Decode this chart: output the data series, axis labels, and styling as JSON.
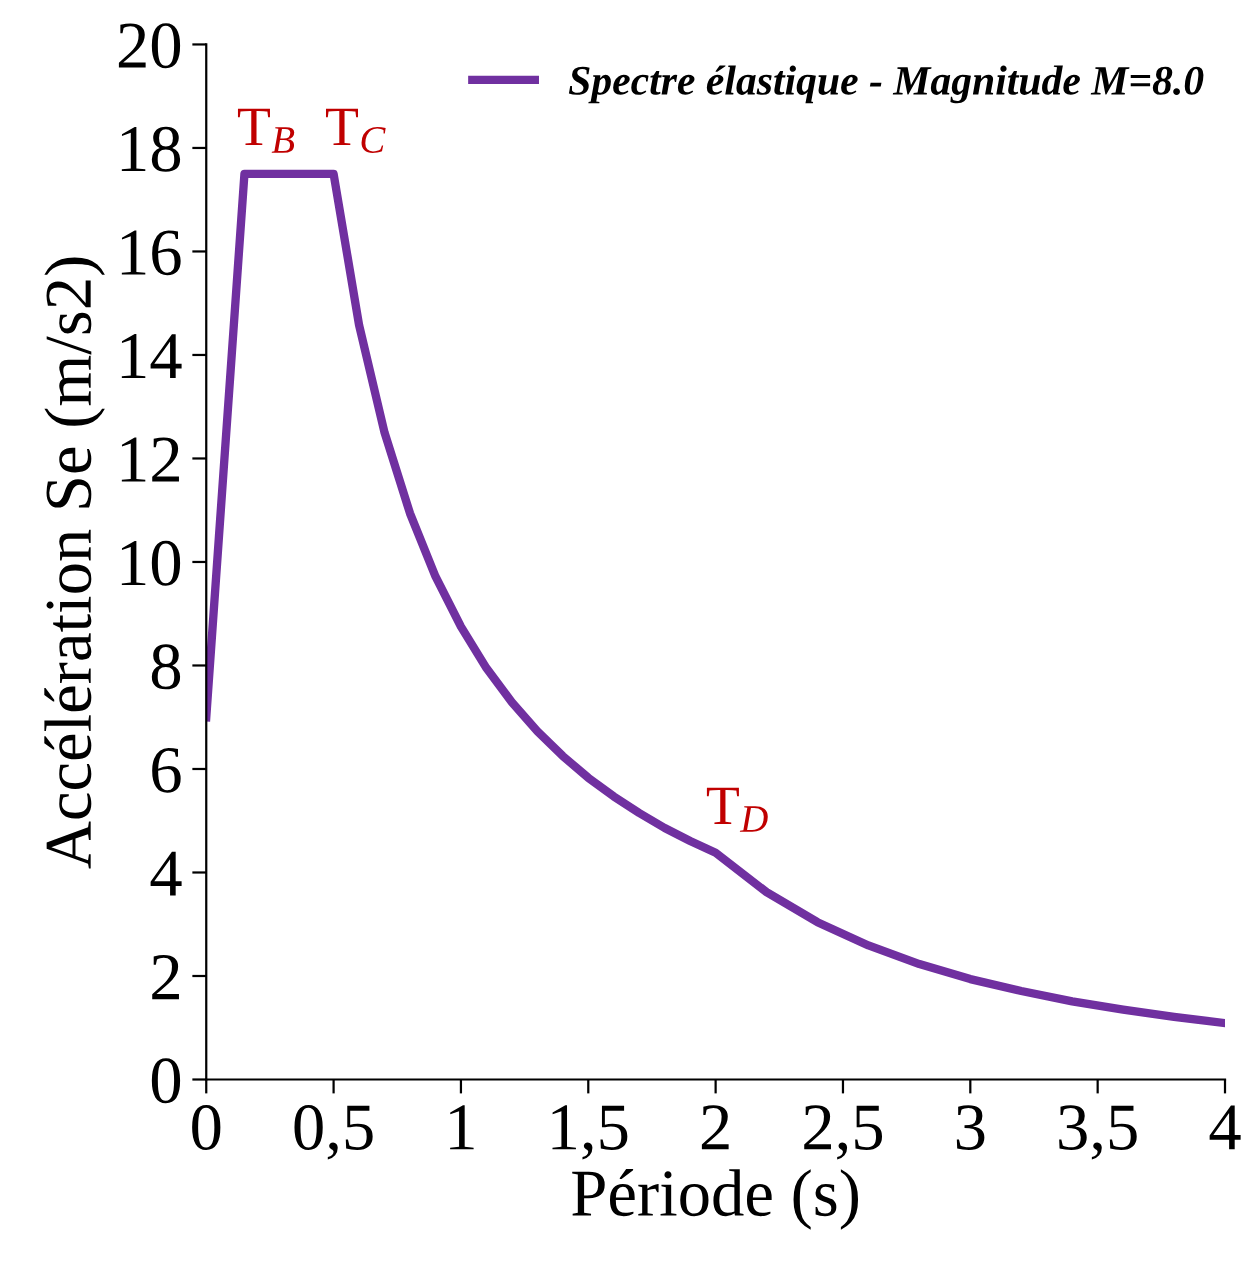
{
  "chart_data": {
    "type": "line",
    "xlabel": "Période (s)",
    "ylabel": "Accélération Se (m/s2)",
    "x": [
      0,
      0.05,
      0.1,
      0.15,
      0.5,
      0.6,
      0.7,
      0.8,
      0.9,
      1.0,
      1.1,
      1.2,
      1.3,
      1.4,
      1.5,
      1.6,
      1.7,
      1.8,
      1.9,
      2.0,
      2.2,
      2.4,
      2.6,
      2.8,
      3.0,
      3.2,
      3.4,
      3.6,
      3.8,
      4.0
    ],
    "series": [
      {
        "name": "Spectre élastique - Magnitude M=8.0",
        "color": "#7030a0",
        "values": [
          7,
          10.5,
          14,
          17.5,
          17.5,
          14.58,
          12.5,
          10.94,
          9.72,
          8.75,
          7.95,
          7.29,
          6.73,
          6.25,
          5.83,
          5.47,
          5.15,
          4.86,
          4.61,
          4.38,
          3.62,
          3.04,
          2.59,
          2.23,
          1.94,
          1.71,
          1.51,
          1.35,
          1.21,
          1.09
        ]
      }
    ],
    "xlim": [
      0,
      4
    ],
    "ylim": [
      0,
      20
    ],
    "xticks": [
      0,
      {
        "value": 0.5,
        "label": "0,5"
      },
      1,
      {
        "value": 1.5,
        "label": "1,5"
      },
      2,
      {
        "value": 2.5,
        "label": "2,5"
      },
      3,
      {
        "value": 3.5,
        "label": "3,5"
      },
      4
    ],
    "yticks": [
      0,
      2,
      4,
      6,
      8,
      10,
      12,
      14,
      16,
      18,
      20
    ],
    "annotations": [
      {
        "text": "T$_{B}$",
        "x": 0.15,
        "y": 17.5
      },
      {
        "text": "T$_{C}$",
        "x": 0.5,
        "y": 17.5
      },
      {
        "text": "T$_{D}$",
        "x": 2.0,
        "y": 4.38
      }
    ],
    "grid": false,
    "legend": "top right",
    "marker": "none",
    "line_style": "solid"
  }
}
